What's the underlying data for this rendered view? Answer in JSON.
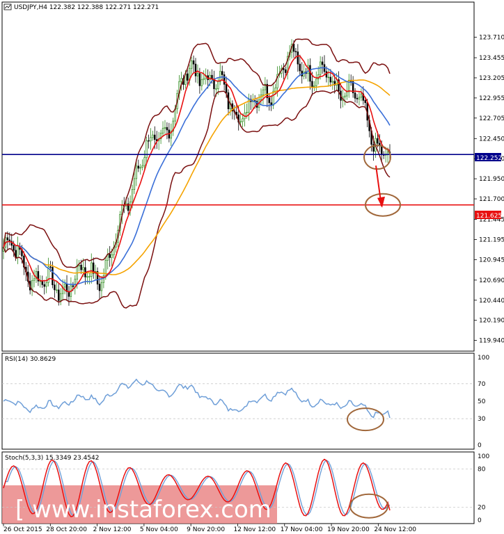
{
  "colors": {
    "background": "#ffffff",
    "bull_candle": "#2e8b1e",
    "bear_candle": "#000000",
    "bollinger": "#7a0f0f",
    "ma_fast": "#e81010",
    "ma_mid": "#3a6fd8",
    "ma_slow": "#f5a300",
    "support_line": "#00008b",
    "target_line": "#e81010",
    "rsi_line": "#6f9fd8",
    "stoch_main": "#e81010",
    "stoch_signal": "#6f9fd8",
    "highlight_circle": "#a0673a",
    "watermark_bg": "#e98080"
  },
  "main_panel": {
    "header": "USDJPY,H4  122.382 122.388 122.271 122.271",
    "price_ticks": [
      "123.710",
      "123.455",
      "123.205",
      "122.955",
      "122.705",
      "122.450",
      "122.200",
      "121.950",
      "121.700",
      "121.445",
      "121.195",
      "120.945",
      "120.690",
      "120.440",
      "120.190",
      "119.940"
    ],
    "support_tag": "122.252",
    "target_tag": "121.625"
  },
  "rsi_panel": {
    "header": "RSI(14) 30.8629",
    "ticks": [
      "100",
      "70",
      "50",
      "30",
      "0"
    ]
  },
  "stoch_panel": {
    "header": "Stoch(5,3,3) 15.3349 23.4542",
    "ticks": [
      "100",
      "80",
      "20",
      "0"
    ]
  },
  "time_axis": {
    "labels": [
      "26 Oct 2015",
      "28 Oct 20:00",
      "2 Nov 12:00",
      "5 Nov 04:00",
      "9 Nov 20:00",
      "12 Nov 12:00",
      "17 Nov 04:00",
      "19 Nov 20:00",
      "24 Nov 12:00"
    ]
  },
  "watermark": {
    "text": "[ www.instaforex.com ]"
  },
  "chart_data": {
    "type": "line",
    "title": "USDJPY,H4",
    "ohlc_last": {
      "open": 122.382,
      "high": 122.388,
      "low": 122.271,
      "close": 122.271
    },
    "x": [
      "26 Oct 2015",
      "28 Oct 20:00",
      "2 Nov 12:00",
      "5 Nov 04:00",
      "9 Nov 20:00",
      "12 Nov 12:00",
      "17 Nov 04:00",
      "19 Nov 20:00",
      "24 Nov 12:00"
    ],
    "ylim": [
      119.85,
      124.0
    ],
    "horizontal_levels": [
      122.252,
      121.625
    ],
    "series": [
      {
        "values": [
          121.1,
          120.6,
          120.8,
          122.3,
          123.3,
          122.8,
          123.4,
          123.1,
          122.27
        ]
      }
    ],
    "rsi": {
      "value": 30.8629,
      "levels": [
        70,
        50,
        30
      ],
      "ylim": [
        0,
        100
      ]
    },
    "stochastic": {
      "main": 15.3349,
      "signal": 23.4542,
      "levels": [
        80,
        20
      ],
      "ylim": [
        0,
        100
      ]
    }
  }
}
